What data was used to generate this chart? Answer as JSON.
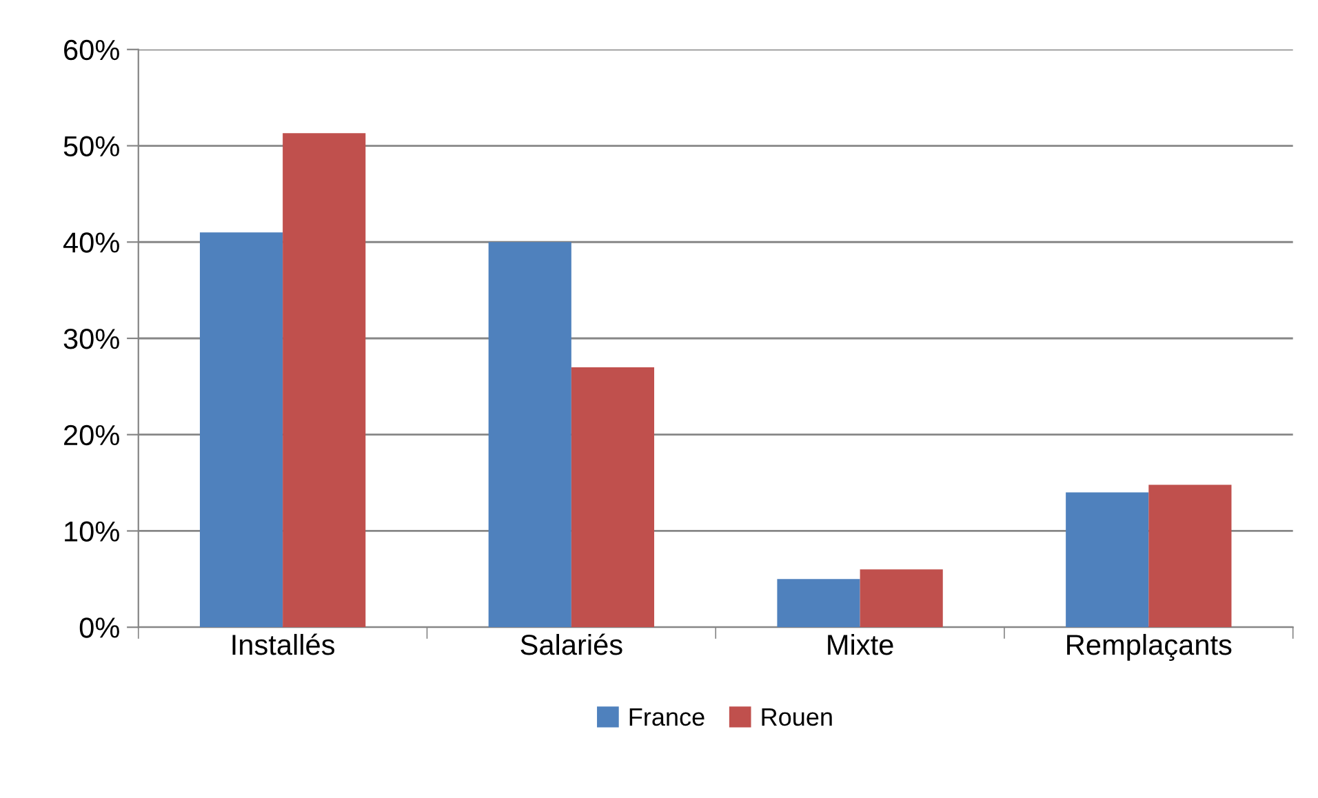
{
  "chart_data": {
    "type": "bar",
    "categories": [
      "Installés",
      "Salariés",
      "Mixte",
      "Remplaçants"
    ],
    "series": [
      {
        "name": "France",
        "color": "#4f81bd",
        "values": [
          41,
          40,
          5,
          14
        ]
      },
      {
        "name": "Rouen",
        "color": "#c0504d",
        "values": [
          51.3,
          27,
          6,
          14.8
        ]
      }
    ],
    "ylim": [
      0,
      60
    ],
    "yticks": [
      {
        "value": 0,
        "label": "0%"
      },
      {
        "value": 10,
        "label": "10%"
      },
      {
        "value": 20,
        "label": "20%"
      },
      {
        "value": 30,
        "label": "30%"
      },
      {
        "value": 40,
        "label": "40%"
      },
      {
        "value": 50,
        "label": "50%"
      },
      {
        "value": 60,
        "label": "60%"
      }
    ],
    "grid": "y",
    "legend": "bottom"
  }
}
